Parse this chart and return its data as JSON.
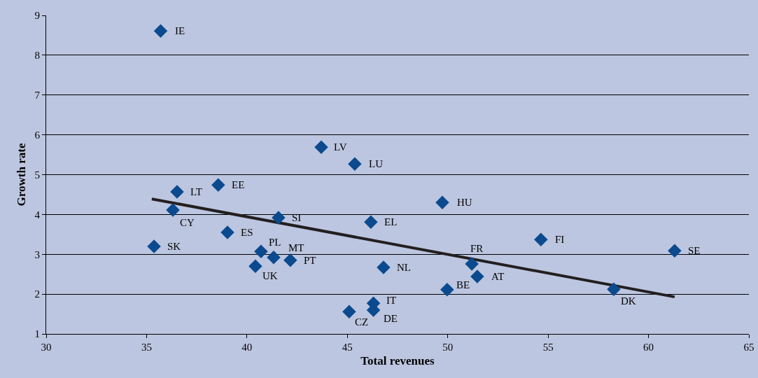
{
  "chart_data": {
    "type": "scatter",
    "xlabel": "Total revenues",
    "ylabel": "Growth rate",
    "xlim": [
      30,
      65
    ],
    "xticks": [
      30,
      35,
      40,
      45,
      50,
      55,
      60,
      65
    ],
    "ylim": [
      1,
      9
    ],
    "yticks": [
      1,
      2,
      3,
      4,
      5,
      6,
      7,
      8,
      9
    ],
    "grid": "y",
    "legend": false,
    "series": [
      {
        "color": "#0b4a8e",
        "marker": "diamond",
        "x": [
          35.7,
          43.7,
          45.37,
          38.57,
          36.52,
          49.73,
          36.31,
          41.57,
          46.17,
          39.03,
          54.64,
          35.37,
          61.3,
          40.7,
          41.33,
          42.16,
          40.42,
          51.2,
          46.8,
          51.47,
          49.97,
          58.27,
          46.3,
          46.3,
          45.09
        ],
        "values": [
          8.61,
          5.69,
          5.27,
          4.74,
          4.57,
          4.3,
          4.11,
          3.92,
          3.81,
          3.55,
          3.37,
          3.2,
          3.09,
          3.07,
          2.92,
          2.85,
          2.7,
          2.76,
          2.67,
          2.44,
          2.11,
          2.12,
          1.77,
          1.6,
          1.56
        ]
      },
      {
        "type": "line",
        "marker": "none",
        "color": "#231f20",
        "x": [
          35.26,
          61.3
        ],
        "values": [
          4.39,
          1.93
        ]
      }
    ],
    "annotations": [
      {
        "text": "IE",
        "x": 35.7,
        "y": 8.61
      },
      {
        "text": "LV",
        "x": 43.7,
        "y": 5.69
      },
      {
        "text": "LU",
        "x": 45.37,
        "y": 5.27
      },
      {
        "text": "EE",
        "x": 38.57,
        "y": 4.74
      },
      {
        "text": "LT",
        "x": 36.52,
        "y": 4.57
      },
      {
        "text": "HU",
        "x": 49.73,
        "y": 4.3
      },
      {
        "text": "CY",
        "x": 36.31,
        "y": 4.11
      },
      {
        "text": "SI",
        "x": 41.57,
        "y": 3.92
      },
      {
        "text": "EL",
        "x": 46.17,
        "y": 3.81
      },
      {
        "text": "ES",
        "x": 39.03,
        "y": 3.55
      },
      {
        "text": "FI",
        "x": 54.64,
        "y": 3.37
      },
      {
        "text": "SK",
        "x": 35.37,
        "y": 3.2
      },
      {
        "text": "SE",
        "x": 61.3,
        "y": 3.09
      },
      {
        "text": "PL",
        "x": 40.7,
        "y": 3.07
      },
      {
        "text": "MT",
        "x": 41.33,
        "y": 2.92
      },
      {
        "text": "PT",
        "x": 42.16,
        "y": 2.85
      },
      {
        "text": "UK",
        "x": 40.42,
        "y": 2.7
      },
      {
        "text": "FR",
        "x": 51.2,
        "y": 2.76
      },
      {
        "text": "NL",
        "x": 46.8,
        "y": 2.67
      },
      {
        "text": "AT",
        "x": 51.47,
        "y": 2.44
      },
      {
        "text": "BE",
        "x": 49.97,
        "y": 2.11
      },
      {
        "text": "DK",
        "x": 58.27,
        "y": 2.12
      },
      {
        "text": "IT",
        "x": 46.3,
        "y": 1.77
      },
      {
        "text": "DE",
        "x": 46.3,
        "y": 1.6
      },
      {
        "text": "CZ",
        "x": 45.09,
        "y": 1.56
      }
    ]
  }
}
